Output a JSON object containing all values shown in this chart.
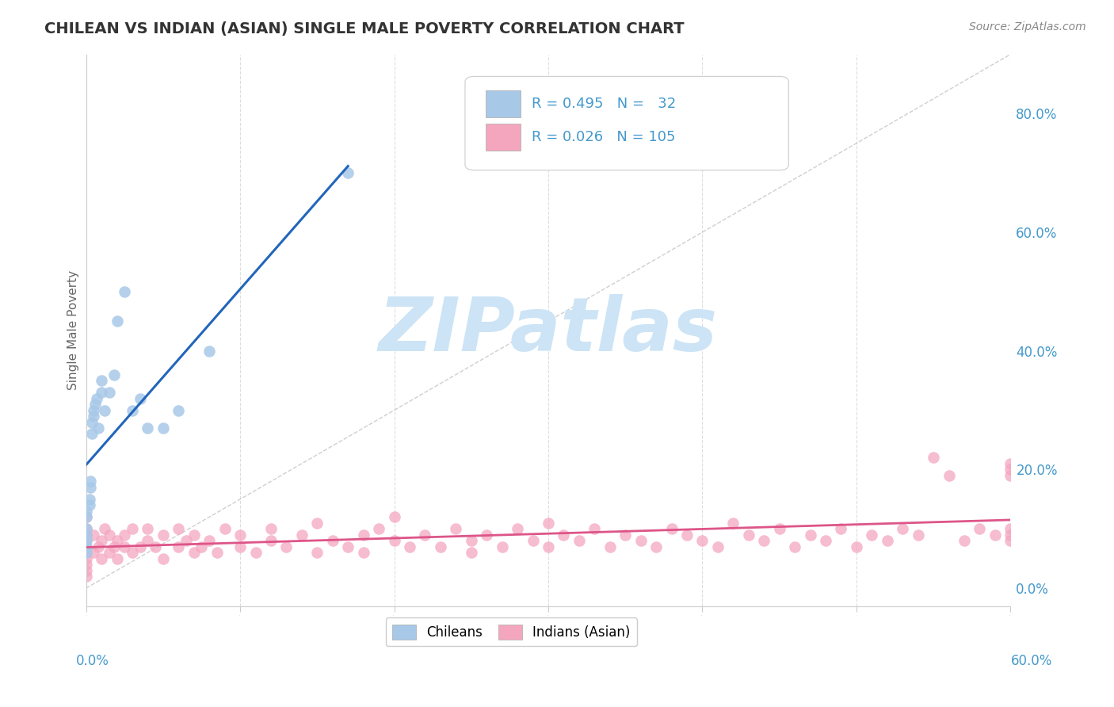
{
  "title": "CHILEAN VS INDIAN (ASIAN) SINGLE MALE POVERTY CORRELATION CHART",
  "source_text": "Source: ZipAtlas.com",
  "ylabel": "Single Male Poverty",
  "yticks_right": [
    "0.0%",
    "20.0%",
    "40.0%",
    "60.0%",
    "80.0%"
  ],
  "ytick_vals": [
    0.0,
    0.2,
    0.4,
    0.6,
    0.8
  ],
  "legend_blue_R": "0.495",
  "legend_blue_N": "32",
  "legend_pink_R": "0.026",
  "legend_pink_N": "105",
  "blue_color": "#a8c8e8",
  "pink_color": "#f4a6bf",
  "blue_line_color": "#2266bb",
  "pink_line_color": "#dd5588",
  "diag_color": "#bbbbbb",
  "watermark_text": "ZIPatlas",
  "watermark_color": "#cce4f5",
  "background_color": "#ffffff",
  "grid_color": "#dddddd",
  "title_color": "#333333",
  "source_color": "#888888",
  "accent_color": "#4499cc",
  "xlim": [
    0.0,
    0.6
  ],
  "ylim": [
    -0.03,
    0.9
  ],
  "chileans_x": [
    0.0,
    0.0,
    0.0,
    0.0,
    0.0,
    0.0,
    0.0,
    0.002,
    0.002,
    0.003,
    0.003,
    0.004,
    0.004,
    0.005,
    0.005,
    0.006,
    0.007,
    0.008,
    0.01,
    0.01,
    0.012,
    0.015,
    0.018,
    0.02,
    0.025,
    0.03,
    0.035,
    0.04,
    0.05,
    0.06,
    0.08,
    0.17
  ],
  "chileans_y": [
    0.06,
    0.07,
    0.08,
    0.09,
    0.1,
    0.12,
    0.13,
    0.14,
    0.15,
    0.17,
    0.18,
    0.26,
    0.28,
    0.29,
    0.3,
    0.31,
    0.32,
    0.27,
    0.33,
    0.35,
    0.3,
    0.33,
    0.36,
    0.45,
    0.5,
    0.3,
    0.32,
    0.27,
    0.27,
    0.3,
    0.4,
    0.7
  ],
  "indians_x": [
    0.0,
    0.0,
    0.0,
    0.0,
    0.0,
    0.0,
    0.0,
    0.0,
    0.0,
    0.0,
    0.005,
    0.005,
    0.008,
    0.01,
    0.01,
    0.012,
    0.015,
    0.015,
    0.018,
    0.02,
    0.02,
    0.025,
    0.025,
    0.03,
    0.03,
    0.035,
    0.04,
    0.04,
    0.045,
    0.05,
    0.05,
    0.06,
    0.06,
    0.065,
    0.07,
    0.07,
    0.075,
    0.08,
    0.085,
    0.09,
    0.1,
    0.1,
    0.11,
    0.12,
    0.12,
    0.13,
    0.14,
    0.15,
    0.15,
    0.16,
    0.17,
    0.18,
    0.18,
    0.19,
    0.2,
    0.2,
    0.21,
    0.22,
    0.23,
    0.24,
    0.25,
    0.25,
    0.26,
    0.27,
    0.28,
    0.29,
    0.3,
    0.3,
    0.31,
    0.32,
    0.33,
    0.34,
    0.35,
    0.36,
    0.37,
    0.38,
    0.39,
    0.4,
    0.41,
    0.42,
    0.43,
    0.44,
    0.45,
    0.46,
    0.47,
    0.48,
    0.49,
    0.5,
    0.51,
    0.52,
    0.53,
    0.54,
    0.55,
    0.56,
    0.57,
    0.58,
    0.59,
    0.6,
    0.6,
    0.6,
    0.6,
    0.6,
    0.6
  ],
  "indians_y": [
    0.02,
    0.03,
    0.04,
    0.05,
    0.06,
    0.07,
    0.08,
    0.09,
    0.1,
    0.12,
    0.06,
    0.09,
    0.07,
    0.05,
    0.08,
    0.1,
    0.06,
    0.09,
    0.07,
    0.05,
    0.08,
    0.07,
    0.09,
    0.06,
    0.1,
    0.07,
    0.08,
    0.1,
    0.07,
    0.05,
    0.09,
    0.07,
    0.1,
    0.08,
    0.06,
    0.09,
    0.07,
    0.08,
    0.06,
    0.1,
    0.07,
    0.09,
    0.06,
    0.08,
    0.1,
    0.07,
    0.09,
    0.06,
    0.11,
    0.08,
    0.07,
    0.09,
    0.06,
    0.1,
    0.08,
    0.12,
    0.07,
    0.09,
    0.07,
    0.1,
    0.08,
    0.06,
    0.09,
    0.07,
    0.1,
    0.08,
    0.07,
    0.11,
    0.09,
    0.08,
    0.1,
    0.07,
    0.09,
    0.08,
    0.07,
    0.1,
    0.09,
    0.08,
    0.07,
    0.11,
    0.09,
    0.08,
    0.1,
    0.07,
    0.09,
    0.08,
    0.1,
    0.07,
    0.09,
    0.08,
    0.1,
    0.09,
    0.22,
    0.19,
    0.08,
    0.1,
    0.09,
    0.21,
    0.1,
    0.08,
    0.09,
    0.19,
    0.2
  ]
}
